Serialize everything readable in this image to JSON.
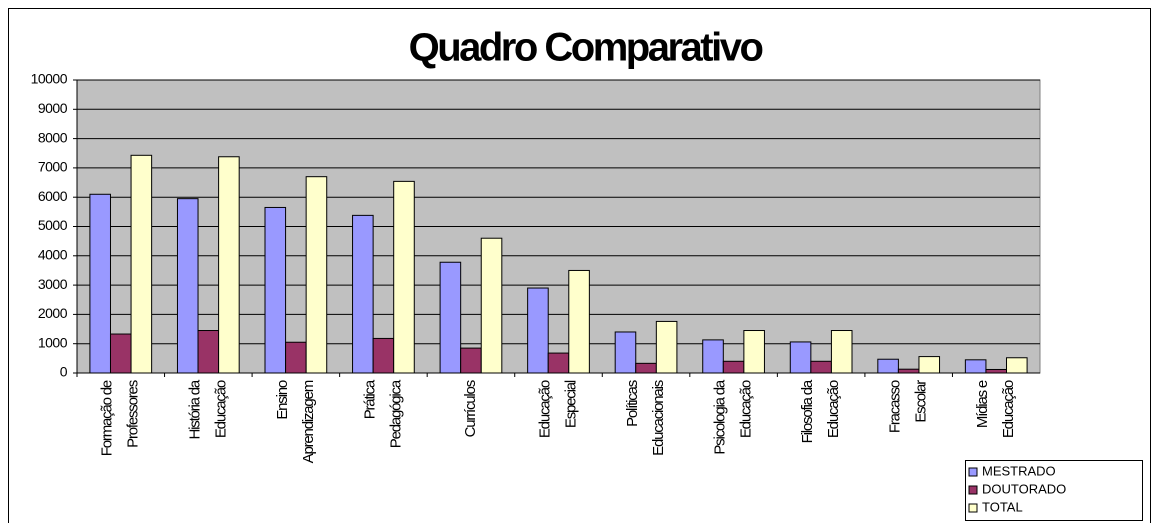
{
  "chart_data": {
    "type": "bar",
    "title": "Quadro Comparativo",
    "categories": [
      [
        "Formação de",
        "Professores"
      ],
      [
        "História da",
        "Educação"
      ],
      [
        "Ensino",
        "Aprendizagem"
      ],
      [
        "Prática",
        "Pedagógica"
      ],
      [
        "Currículos"
      ],
      [
        "Educação",
        "Especial"
      ],
      [
        "Políticas",
        "Educacionais"
      ],
      [
        "Psicologia da",
        "Educação"
      ],
      [
        "Filosofia da",
        "Educação"
      ],
      [
        "Fracasso",
        "Escolar"
      ],
      [
        "Mídias e",
        "Educação"
      ]
    ],
    "series": [
      {
        "name": "MESTRADO",
        "color": "#9999ff",
        "values": [
          6100,
          5950,
          5650,
          5380,
          3780,
          2900,
          1400,
          1130,
          1060,
          470,
          450
        ]
      },
      {
        "name": "DOUTORADO",
        "color": "#993366",
        "values": [
          1330,
          1450,
          1050,
          1180,
          850,
          680,
          330,
          400,
          400,
          130,
          120
        ]
      },
      {
        "name": "TOTAL",
        "color": "#ffffcc",
        "values": [
          7430,
          7380,
          6700,
          6540,
          4600,
          3500,
          1760,
          1450,
          1450,
          560,
          520
        ]
      }
    ],
    "ylim": [
      0,
      10000
    ],
    "yticks": [
      0,
      1000,
      2000,
      3000,
      4000,
      5000,
      6000,
      7000,
      8000,
      9000,
      10000
    ],
    "grid": true
  }
}
